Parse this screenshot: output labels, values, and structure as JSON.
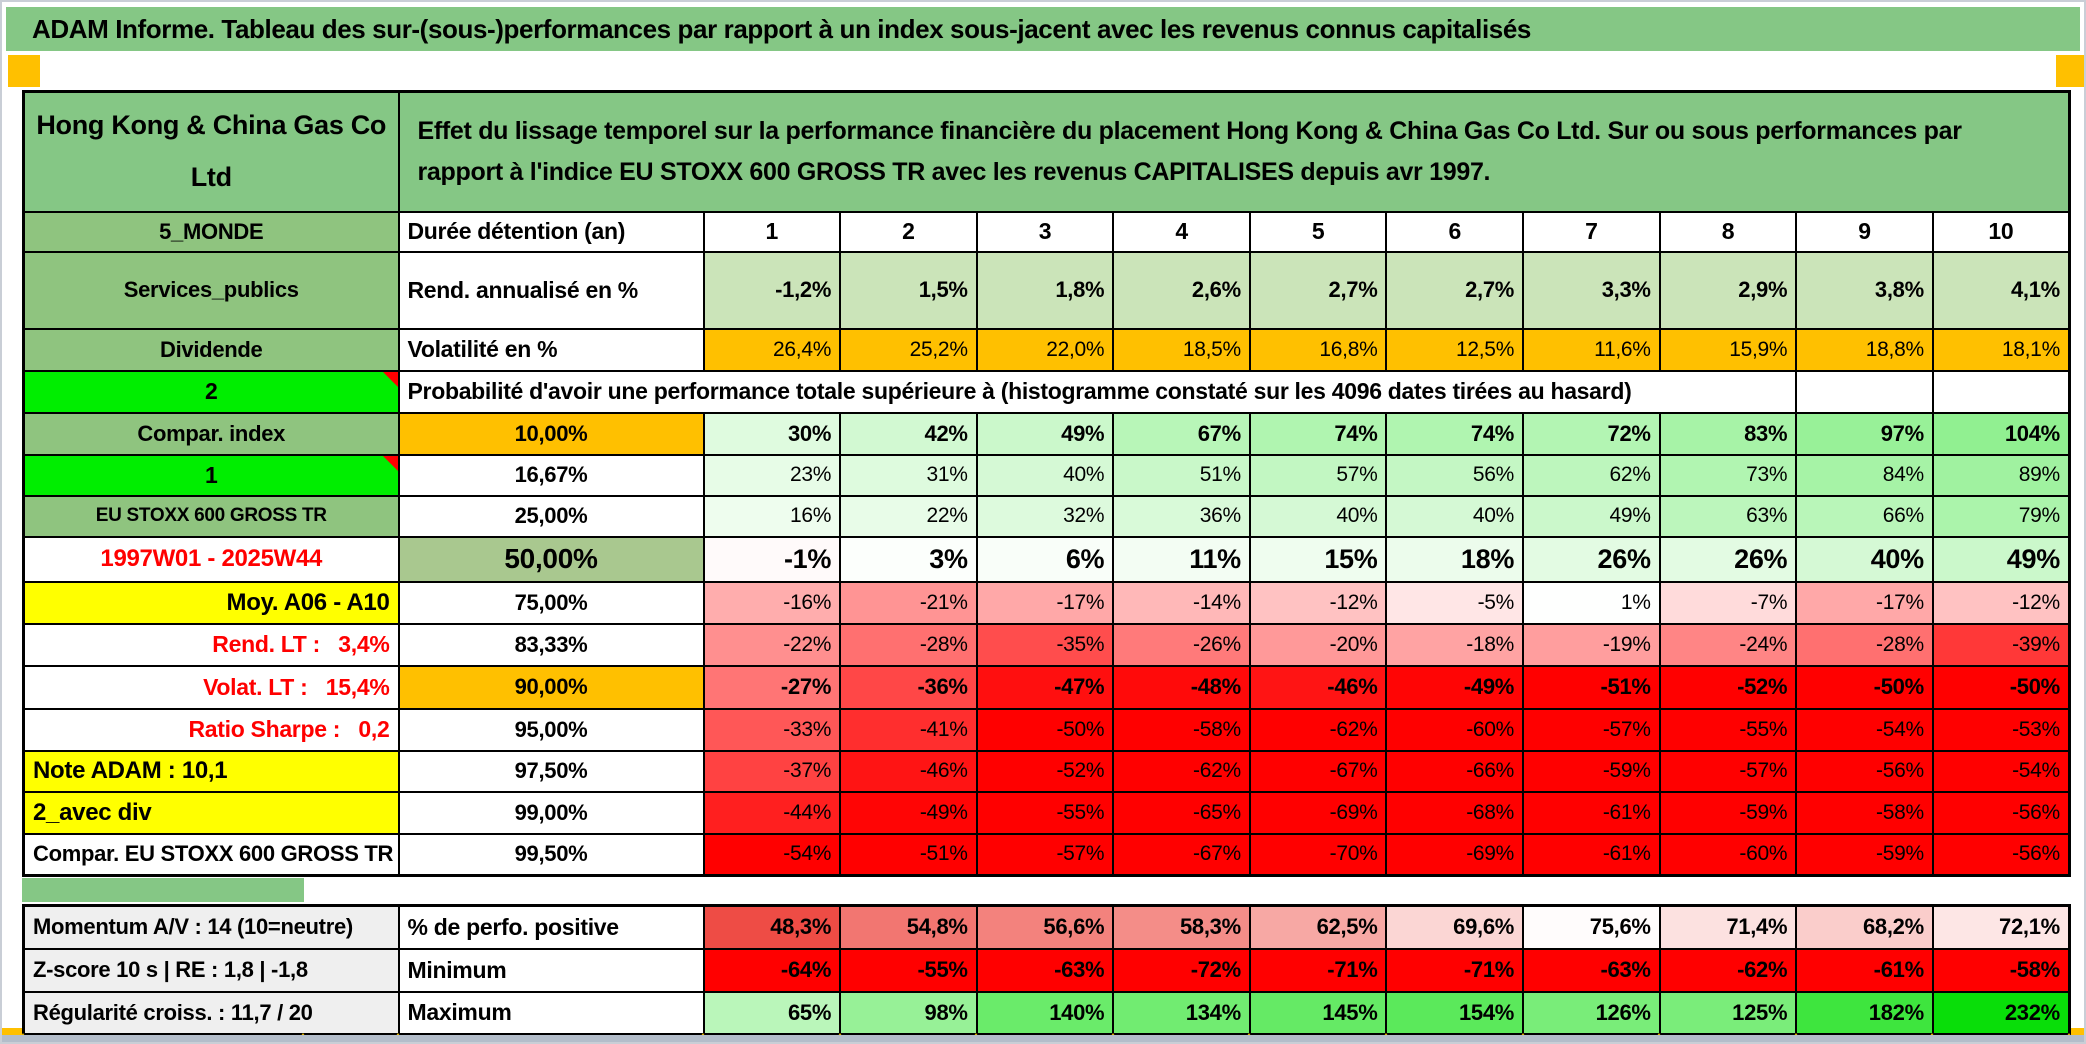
{
  "window": {
    "title": "ADAM Informe. Tableau des sur-(sous-)performances par rapport à un index sous-jacent avec les revenus connus capitalisés"
  },
  "colors": {
    "title_green": "#85c785",
    "label_green": "#8fc47f",
    "bright_green": "#00ee00",
    "orange": "#ffc000",
    "yellow": "#ffff00",
    "gray_label": "#efefef",
    "rend_row_green": "#cbe4b9",
    "mid_green": "#a9c88f",
    "full_red": "#ff0000",
    "pos_green_max": "#00dd00",
    "perf_red": "#ee4a43"
  },
  "header": {
    "company": "Hong Kong & China Gas Co Ltd",
    "description": "Effet du lissage temporel sur la performance financière du placement Hong Kong & China Gas Co Ltd. Sur ou sous performances par rapport à l'indice EU STOXX 600 GROSS TR avec les revenus CAPITALISES depuis avr 1997."
  },
  "table": {
    "sector": "5_MONDE",
    "duration_label": "Durée détention (an)",
    "years": [
      "1",
      "2",
      "3",
      "4",
      "5",
      "6",
      "7",
      "8",
      "9",
      "10"
    ],
    "industry": "Services_publics",
    "rend_label": "Rend. annualisé en %",
    "rend_values": [
      "-1,2%",
      "1,5%",
      "1,8%",
      "2,6%",
      "2,7%",
      "2,7%",
      "3,3%",
      "2,9%",
      "3,8%",
      "4,1%"
    ],
    "dividend_label": "Dividende",
    "vol_label": "Volatilité en %",
    "vol_values": [
      "26,4%",
      "25,2%",
      "22,0%",
      "18,5%",
      "16,8%",
      "12,5%",
      "11,6%",
      "15,9%",
      "18,8%",
      "18,1%"
    ],
    "cell_2": "2",
    "proba_header": "Probabilité d'avoir une performance totale supérieure à (histogramme constaté sur les 4096 dates tirées au hasard)",
    "proba_rows": [
      {
        "label": "Compar. index",
        "labelType": "green",
        "threshold": "10,00%",
        "thresholdBg": "orange",
        "bold": true,
        "values": [
          "30%",
          "42%",
          "49%",
          "67%",
          "74%",
          "74%",
          "72%",
          "83%",
          "97%",
          "104%"
        ]
      },
      {
        "label": "1",
        "labelType": "bright",
        "comment": true,
        "threshold": "16,67%",
        "values": [
          "23%",
          "31%",
          "40%",
          "51%",
          "57%",
          "56%",
          "62%",
          "73%",
          "84%",
          "89%"
        ]
      },
      {
        "label": "EU STOXX 600 GROSS TR",
        "labelType": "green-sm",
        "threshold": "25,00%",
        "values": [
          "16%",
          "22%",
          "32%",
          "36%",
          "40%",
          "40%",
          "49%",
          "63%",
          "66%",
          "79%"
        ]
      },
      {
        "label": "1997W01 - 2025W44",
        "labelType": "red-center",
        "threshold": "50,00%",
        "thresholdBg": "mid",
        "big": true,
        "values": [
          "-1%",
          "3%",
          "6%",
          "11%",
          "15%",
          "18%",
          "26%",
          "26%",
          "40%",
          "49%"
        ]
      },
      {
        "label": "Moy. A06 - A10",
        "labelType": "yellow-right",
        "threshold": "75,00%",
        "values": [
          "-16%",
          "-21%",
          "-17%",
          "-14%",
          "-12%",
          "-5%",
          "1%",
          "-7%",
          "-17%",
          "-12%"
        ]
      },
      {
        "label": "Rend. LT :   3,4%",
        "labelType": "red-right",
        "threshold": "83,33%",
        "values": [
          "-22%",
          "-28%",
          "-35%",
          "-26%",
          "-20%",
          "-18%",
          "-19%",
          "-24%",
          "-28%",
          "-39%"
        ]
      },
      {
        "label": "Volat. LT :   15,4%",
        "labelType": "red-right",
        "threshold": "90,00%",
        "thresholdBg": "orange",
        "bold": true,
        "values": [
          "-27%",
          "-36%",
          "-47%",
          "-48%",
          "-46%",
          "-49%",
          "-51%",
          "-52%",
          "-50%",
          "-50%"
        ]
      },
      {
        "label": "Ratio Sharpe :   0,2",
        "labelType": "red-right",
        "threshold": "95,00%",
        "values": [
          "-33%",
          "-41%",
          "-50%",
          "-58%",
          "-62%",
          "-60%",
          "-57%",
          "-55%",
          "-54%",
          "-53%"
        ]
      },
      {
        "label": "Note ADAM : 10,1",
        "labelType": "yellow-left",
        "threshold": "97,50%",
        "values": [
          "-37%",
          "-46%",
          "-52%",
          "-62%",
          "-67%",
          "-66%",
          "-59%",
          "-57%",
          "-56%",
          "-54%"
        ]
      },
      {
        "label": "2_avec div",
        "labelType": "yellow-left",
        "threshold": "99,00%",
        "values": [
          "-44%",
          "-49%",
          "-55%",
          "-65%",
          "-69%",
          "-68%",
          "-61%",
          "-59%",
          "-58%",
          "-56%"
        ]
      },
      {
        "label": "Compar. EU STOXX 600 GROSS TR",
        "labelType": "white-center",
        "threshold": "99,50%",
        "values": [
          "-54%",
          "-51%",
          "-57%",
          "-67%",
          "-70%",
          "-69%",
          "-61%",
          "-60%",
          "-59%",
          "-56%"
        ]
      }
    ],
    "summary_rows": [
      {
        "label": "Momentum A/V : 14 (10=neutre)",
        "metric": "% de perfo. positive",
        "scale": "perf",
        "values": [
          "48,3%",
          "54,8%",
          "56,6%",
          "58,3%",
          "62,5%",
          "69,6%",
          "75,6%",
          "71,4%",
          "68,2%",
          "72,1%"
        ]
      },
      {
        "label": "Z-score 10 s | RE : 1,8 | -1,8",
        "metric": "Minimum",
        "scale": "red",
        "values": [
          "-64%",
          "-55%",
          "-63%",
          "-72%",
          "-71%",
          "-71%",
          "-63%",
          "-62%",
          "-61%",
          "-58%"
        ]
      },
      {
        "label": "Régularité croiss. : 11,7 / 20",
        "metric": "Maximum",
        "scale": "pm",
        "values": [
          "65%",
          "98%",
          "140%",
          "134%",
          "145%",
          "154%",
          "126%",
          "125%",
          "182%",
          "232%"
        ]
      }
    ]
  }
}
